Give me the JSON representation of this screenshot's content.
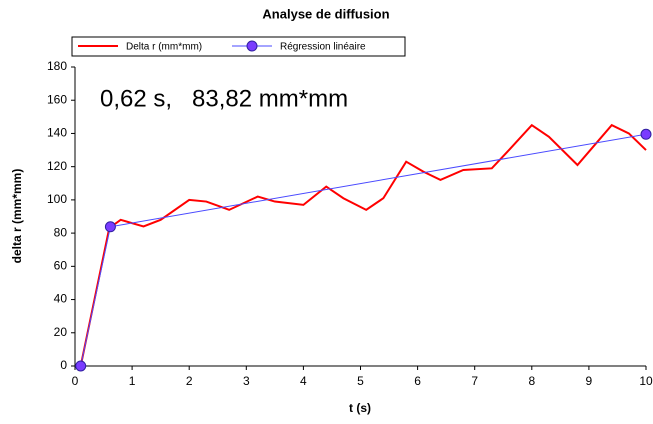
{
  "chart_data": {
    "type": "line",
    "title": "Analyse de diffusion",
    "annotation": "0,62 s,   83,82 mm*mm",
    "xlabel": "t (s)",
    "ylabel": "delta r (mm*mm)",
    "xlim": [
      0,
      10
    ],
    "xticks": [
      0,
      1,
      2,
      3,
      4,
      5,
      6,
      7,
      8,
      9,
      10
    ],
    "ylim": [
      0,
      180
    ],
    "yticks": [
      0,
      20,
      40,
      60,
      80,
      100,
      120,
      140,
      160,
      180
    ],
    "series": [
      {
        "name": "Delta r (mm*mm)",
        "color": "#ff0000",
        "x": [
          0.1,
          0.6,
          0.8,
          1.2,
          1.5,
          2,
          2.3,
          2.7,
          3.2,
          3.5,
          4,
          4.4,
          4.7,
          5.1,
          5.4,
          5.8,
          6.1,
          6.4,
          6.8,
          7.3,
          7.6,
          8,
          8.3,
          8.8,
          9.1,
          9.4,
          9.7,
          10
        ],
        "values": [
          0,
          83,
          88,
          84,
          88,
          100,
          99,
          94,
          102,
          99,
          97,
          108,
          101,
          94,
          101,
          123,
          117,
          112,
          118,
          119,
          130,
          145,
          138,
          121,
          133,
          145,
          140,
          130
        ]
      },
      {
        "name": "Régression linéaire",
        "color": "#4a4aff",
        "marker_color": "#7a3cff",
        "x": [
          0.1,
          0.62,
          10
        ],
        "values": [
          0,
          83.82,
          139.5
        ]
      }
    ],
    "legend": "top"
  }
}
